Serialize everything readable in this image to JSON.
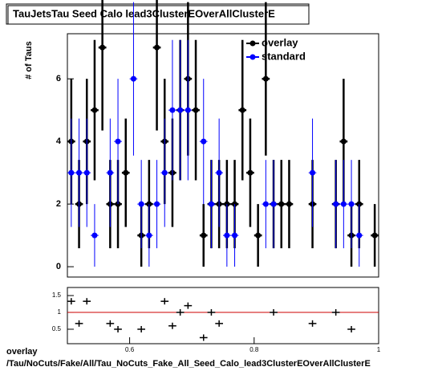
{
  "chart_data": [
    {
      "type": "errorbar",
      "title": "TauJetsTau Seed Calo lead3ClusterEOverAllClusterE",
      "y_label": "# of Taus",
      "x": [
        0.50625,
        0.51875,
        0.53125,
        0.54375,
        0.55625,
        0.56875,
        0.58125,
        0.59375,
        0.60625,
        0.61875,
        0.63125,
        0.64375,
        0.65625,
        0.66875,
        0.68125,
        0.69375,
        0.70625,
        0.71875,
        0.73125,
        0.74375,
        0.75625,
        0.76875,
        0.78125,
        0.79375,
        0.80625,
        0.81875,
        0.83125,
        0.84375,
        0.85625,
        0.86875,
        0.88125,
        0.89375,
        0.90625,
        0.91875,
        0.93125,
        0.94375,
        0.95625,
        0.96875,
        0.98125,
        0.99375
      ],
      "bin_width": 0.0125,
      "series": [
        {
          "name": "overlay",
          "color": "#000000",
          "values": [
            4,
            2,
            4,
            5,
            7,
            2,
            2,
            3,
            null,
            1,
            2,
            7,
            4,
            3,
            5,
            6,
            5,
            1,
            2,
            2,
            2,
            2,
            5,
            3,
            1,
            6,
            2,
            2,
            2,
            null,
            null,
            2,
            null,
            null,
            2,
            4,
            1,
            2,
            null,
            1
          ],
          "errors": [
            2,
            1.41,
            2,
            2.24,
            2.65,
            1.41,
            1.41,
            1.73,
            null,
            1,
            1.41,
            2.65,
            2,
            1.73,
            2.24,
            2.45,
            2.24,
            1,
            1.41,
            1.41,
            1.41,
            1.41,
            2.24,
            1.73,
            1,
            2.45,
            1.41,
            1.41,
            1.41,
            null,
            null,
            1.41,
            null,
            null,
            1.41,
            2,
            1,
            1.41,
            null,
            1
          ]
        },
        {
          "name": "standard",
          "color": "#0000ff",
          "values": [
            3,
            3,
            3,
            1,
            null,
            3,
            4,
            null,
            6,
            2,
            1,
            2,
            3,
            5,
            5,
            5,
            null,
            4,
            2,
            3,
            1,
            1,
            null,
            null,
            null,
            2,
            2,
            null,
            null,
            null,
            null,
            3,
            null,
            null,
            2,
            2,
            2,
            1,
            null,
            null
          ],
          "errors": [
            1.73,
            1.73,
            1.73,
            1,
            null,
            1.73,
            2,
            null,
            2.45,
            1.41,
            1,
            1.41,
            1.73,
            2.24,
            2.24,
            2.24,
            null,
            2,
            1.41,
            1.73,
            1,
            1,
            null,
            null,
            null,
            1.41,
            1.41,
            null,
            null,
            null,
            null,
            1.73,
            null,
            null,
            1.41,
            1.41,
            1.41,
            1,
            null,
            null
          ]
        }
      ],
      "xlim": [
        0.5,
        1.0
      ],
      "ylim": [
        -0.33,
        7.44
      ],
      "yticks": [
        0,
        2,
        4,
        6
      ],
      "legend": "top-right"
    },
    {
      "type": "ratio",
      "x": [
        0.50625,
        0.51875,
        0.53125,
        0.54375,
        0.55625,
        0.56875,
        0.58125,
        0.59375,
        0.60625,
        0.61875,
        0.63125,
        0.64375,
        0.65625,
        0.66875,
        0.68125,
        0.69375,
        0.70625,
        0.71875,
        0.73125,
        0.74375,
        0.75625,
        0.76875,
        0.78125,
        0.79375,
        0.80625,
        0.81875,
        0.83125,
        0.84375,
        0.85625,
        0.86875,
        0.88125,
        0.89375,
        0.90625,
        0.91875,
        0.93125,
        0.94375,
        0.95625,
        0.96875,
        0.98125,
        0.99375
      ],
      "bin_width": 0.0125,
      "values": [
        1.33,
        0.67,
        1.33,
        null,
        null,
        0.67,
        0.5,
        null,
        null,
        0.5,
        null,
        null,
        1.33,
        0.6,
        1,
        1.2,
        null,
        0.25,
        1,
        0.67,
        null,
        null,
        null,
        null,
        null,
        null,
        1,
        null,
        null,
        null,
        null,
        0.67,
        null,
        null,
        1,
        null,
        0.5,
        null,
        null,
        null
      ],
      "color": "#000000",
      "reference": 1,
      "reference_color": "#cc0000",
      "xlim": [
        0.5,
        1.0
      ],
      "ylim": [
        0.07,
        1.74
      ],
      "xticks": [
        0.6,
        0.8,
        1
      ],
      "yticks": [
        0.5,
        1,
        1.5
      ],
      "footer": [
        "overlay",
        "/Tau/NoCuts/Fake/All/Tau_NoCuts_Fake_All_Seed_Calo_lead3ClusterEOverAllClusterE"
      ]
    }
  ]
}
